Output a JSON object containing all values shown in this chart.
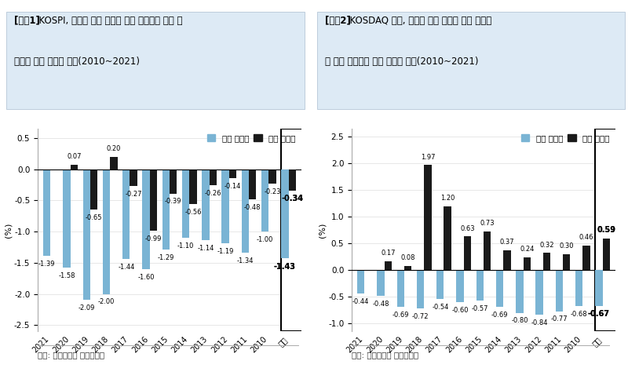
{
  "chart1": {
    "title_line1": "[차트1]  KOSPI, 배당락 전일 발표한 이론 배당락과 실제 배",
    "title_line2": "당락일 시가 하락률 추이(2010~2021)",
    "ylabel": "(%)",
    "categories": [
      "2021",
      "2020",
      "2019",
      "2018",
      "2017",
      "2016",
      "2015",
      "2014",
      "2013",
      "2012",
      "2011",
      "2010",
      "평균"
    ],
    "theory": [
      -1.39,
      -1.58,
      -2.09,
      -2.0,
      -1.44,
      -1.6,
      -1.29,
      -1.1,
      -1.14,
      -1.19,
      -1.34,
      -1.0,
      -1.43
    ],
    "actual": [
      0.0,
      0.07,
      -0.65,
      0.2,
      -0.27,
      -0.99,
      -0.39,
      -0.56,
      -0.26,
      -0.14,
      -0.48,
      -0.23,
      -0.34
    ],
    "ylim": [
      -2.6,
      0.65
    ],
    "yticks": [
      -2.5,
      -2.0,
      -1.5,
      -1.0,
      -0.5,
      0.0,
      0.5
    ],
    "source": "자료: 유안타증권 리서치센터",
    "theory_color": "#7AB4D4",
    "actual_color": "#1A1A1A"
  },
  "chart2": {
    "title_line1": "[차트2]  KOSDAQ 지수, 배당락 전일 발표한 이론 배당락",
    "title_line2": "과 실제 배당락일 시가 하락률 추이(2010~2021)",
    "ylabel": "(%)",
    "categories": [
      "2021",
      "2020",
      "2019",
      "2018",
      "2017",
      "2016",
      "2015",
      "2014",
      "2013",
      "2012",
      "2011",
      "2010",
      "평균"
    ],
    "theory": [
      -0.44,
      -0.48,
      -0.69,
      -0.72,
      -0.54,
      -0.6,
      -0.57,
      -0.69,
      -0.8,
      -0.84,
      -0.77,
      -0.68,
      -0.67
    ],
    "actual": [
      0.0,
      0.17,
      0.08,
      1.97,
      1.2,
      0.63,
      0.73,
      0.37,
      0.24,
      0.32,
      0.3,
      0.46,
      0.59
    ],
    "ylim": [
      -1.15,
      2.65
    ],
    "yticks": [
      -1.0,
      -0.5,
      0.0,
      0.5,
      1.0,
      1.5,
      2.0,
      2.5
    ],
    "source": "자료: 유안타증권 리서치센터",
    "theory_color": "#7AB4D4",
    "actual_color": "#1A1A1A"
  },
  "legend_theory": "이론 배당락",
  "legend_actual": "실제 배당락",
  "title_bg": "#DDEAF5",
  "title_border": "#AABDD0"
}
